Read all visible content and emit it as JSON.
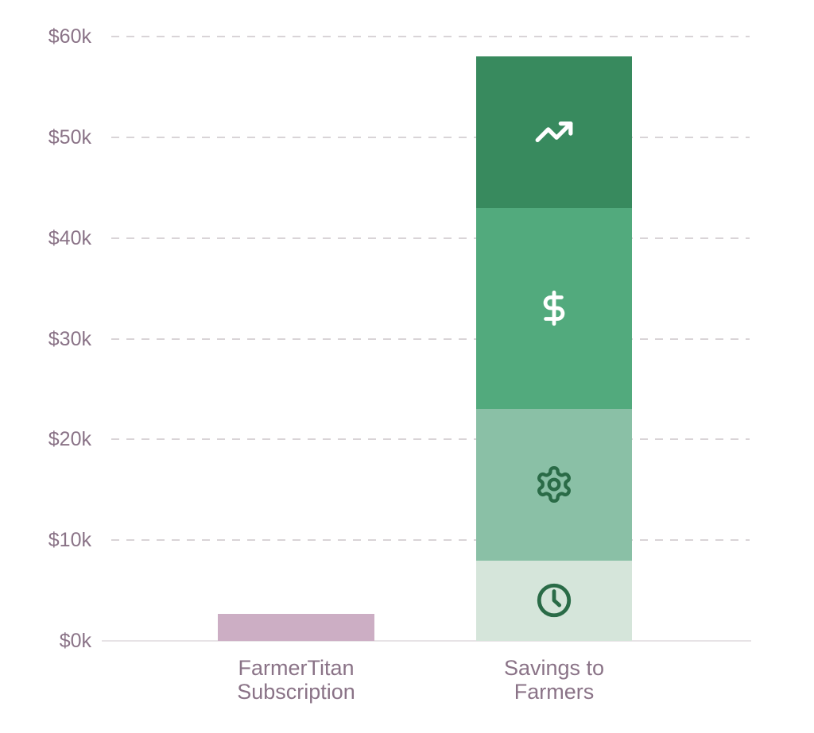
{
  "chart_data": {
    "type": "bar",
    "stacked": true,
    "title": "",
    "xlabel": "",
    "ylabel": "",
    "unit": "USD (thousands)",
    "ylim": [
      0,
      60
    ],
    "grid": "dashed-horizontal",
    "legend": "none",
    "yticks": [
      {
        "value": 0,
        "label": "$0k"
      },
      {
        "value": 10,
        "label": "$10k"
      },
      {
        "value": 20,
        "label": "$20k"
      },
      {
        "value": 30,
        "label": "$30k"
      },
      {
        "value": 40,
        "label": "$40k"
      },
      {
        "value": 50,
        "label": "$50k"
      },
      {
        "value": 60,
        "label": "$60k"
      }
    ],
    "categories": [
      {
        "label": "FarmerTitan Subscription",
        "label_lines": [
          "FarmerTitan",
          "Subscription"
        ],
        "total": 2.7,
        "segments": [
          {
            "name": "subscription-cost-segment",
            "value": 2.7,
            "color": "#ccaec4",
            "icon": null,
            "icon_color": null
          }
        ]
      },
      {
        "label": "Savings to Farmers",
        "label_lines": [
          "Savings to",
          "Farmers"
        ],
        "total": 58,
        "segments": [
          {
            "name": "clock-segment",
            "value": 8,
            "color": "#d5e5da",
            "icon": "clock",
            "icon_color": "#2a6b47"
          },
          {
            "name": "gear-segment",
            "value": 15,
            "color": "#8ac0a6",
            "icon": "gear",
            "icon_color": "#2a6b47"
          },
          {
            "name": "dollar-segment",
            "value": 20,
            "color": "#52aa7d",
            "icon": "dollar-sign",
            "icon_color": "#ffffff"
          },
          {
            "name": "trending-up-segment",
            "value": 15,
            "color": "#388a5e",
            "icon": "trending-up",
            "icon_color": "#ffffff"
          }
        ]
      }
    ],
    "colors": {
      "axis_text": "#8a7387",
      "gridline": "#d9d4d7",
      "baseline": "#e7e3e6",
      "background": "#ffffff"
    }
  }
}
